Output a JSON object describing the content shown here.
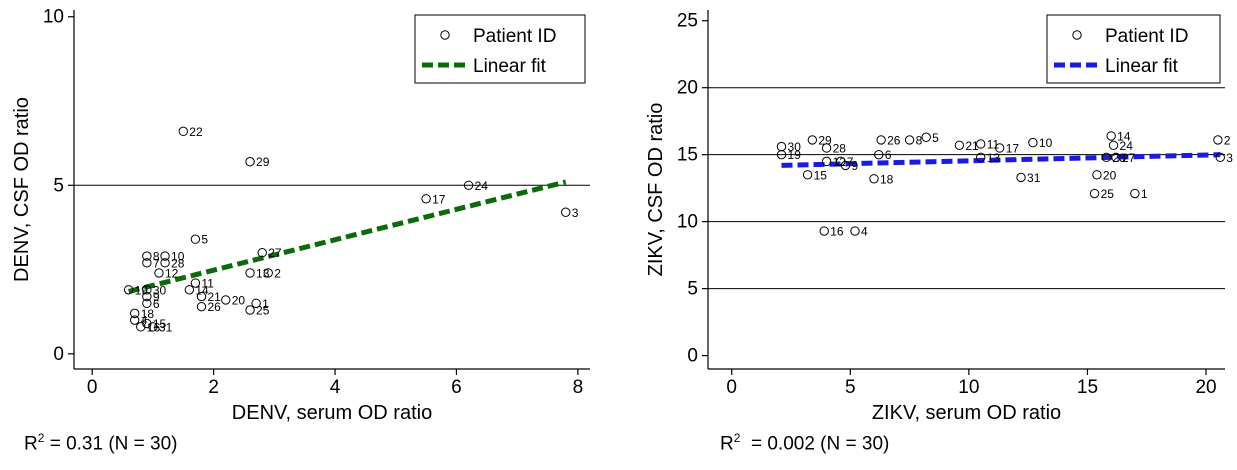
{
  "chart_data": [
    {
      "type": "scatter",
      "title": "",
      "xlabel": "DENV, serum OD ratio",
      "ylabel": "DENV, CSF OD ratio",
      "xlim": [
        -0.3,
        8.2
      ],
      "ylim": [
        -0.45,
        10.2
      ],
      "xticks": [
        0,
        2,
        4,
        6,
        8
      ],
      "yticks": [
        0,
        5,
        10
      ],
      "gridlines_y": [
        5
      ],
      "legend": {
        "position": "top-right",
        "marker_label": "Patient ID",
        "fit_label": "Linear fit"
      },
      "fit_color": "#0b6b0b",
      "fit": {
        "x": [
          0.6,
          7.8
        ],
        "y": [
          1.85,
          5.1
        ]
      },
      "points": [
        {
          "id": "22",
          "x": 1.5,
          "y": 6.6
        },
        {
          "id": "29",
          "x": 2.6,
          "y": 5.7
        },
        {
          "id": "24",
          "x": 6.2,
          "y": 5.0
        },
        {
          "id": "17",
          "x": 5.5,
          "y": 4.6
        },
        {
          "id": "3",
          "x": 7.8,
          "y": 4.2
        },
        {
          "id": "5",
          "x": 1.7,
          "y": 3.4
        },
        {
          "id": "27",
          "x": 2.8,
          "y": 3.0
        },
        {
          "id": "8",
          "x": 0.9,
          "y": 2.9
        },
        {
          "id": "10",
          "x": 1.2,
          "y": 2.9
        },
        {
          "id": "7",
          "x": 0.9,
          "y": 2.7
        },
        {
          "id": "28",
          "x": 1.2,
          "y": 2.7
        },
        {
          "id": "12",
          "x": 1.1,
          "y": 2.4
        },
        {
          "id": "13",
          "x": 2.6,
          "y": 2.4
        },
        {
          "id": "2",
          "x": 2.9,
          "y": 2.4
        },
        {
          "id": "11",
          "x": 1.7,
          "y": 2.1
        },
        {
          "id": "19",
          "x": 0.6,
          "y": 1.9
        },
        {
          "id": "30",
          "x": 0.9,
          "y": 1.9
        },
        {
          "id": "14",
          "x": 1.6,
          "y": 1.9
        },
        {
          "id": "9",
          "x": 0.9,
          "y": 1.7
        },
        {
          "id": "21",
          "x": 1.8,
          "y": 1.7
        },
        {
          "id": "20",
          "x": 2.2,
          "y": 1.6
        },
        {
          "id": "1",
          "x": 2.7,
          "y": 1.5
        },
        {
          "id": "6",
          "x": 0.9,
          "y": 1.5
        },
        {
          "id": "26",
          "x": 1.8,
          "y": 1.4
        },
        {
          "id": "25",
          "x": 2.6,
          "y": 1.3
        },
        {
          "id": "18",
          "x": 0.7,
          "y": 1.2
        },
        {
          "id": "4",
          "x": 0.7,
          "y": 1.0
        },
        {
          "id": "15",
          "x": 0.9,
          "y": 0.9
        },
        {
          "id": "16",
          "x": 0.8,
          "y": 0.8
        },
        {
          "id": "31",
          "x": 1.0,
          "y": 0.8
        }
      ],
      "stat_prefix": "R",
      "stat_sup": "2",
      "stat_suffix": " = 0.31 (N = 30)"
    },
    {
      "type": "scatter",
      "title": "",
      "xlabel": "ZIKV, serum OD ratio",
      "ylabel": "ZIKV, CSF OD ratio",
      "xlim": [
        -1.0,
        20.8
      ],
      "ylim": [
        -1.0,
        25.8
      ],
      "xticks": [
        0,
        5,
        10,
        15,
        20
      ],
      "yticks": [
        0,
        5,
        10,
        15,
        20,
        25
      ],
      "gridlines_y": [
        5,
        10,
        15,
        20
      ],
      "legend": {
        "position": "top-right",
        "marker_label": "Patient ID",
        "fit_label": "Linear fit"
      },
      "fit_color": "#1a1ae6",
      "fit": {
        "x": [
          2.1,
          20.6
        ],
        "y": [
          14.2,
          15.0
        ]
      },
      "points": [
        {
          "id": "30",
          "x": 2.1,
          "y": 15.6
        },
        {
          "id": "19",
          "x": 2.1,
          "y": 15.0
        },
        {
          "id": "29",
          "x": 3.4,
          "y": 16.1
        },
        {
          "id": "28",
          "x": 4.0,
          "y": 15.5
        },
        {
          "id": "12",
          "x": 4.0,
          "y": 14.5
        },
        {
          "id": "7",
          "x": 4.6,
          "y": 14.5
        },
        {
          "id": "9",
          "x": 4.8,
          "y": 14.2
        },
        {
          "id": "15",
          "x": 3.2,
          "y": 13.5
        },
        {
          "id": "26",
          "x": 6.3,
          "y": 16.1
        },
        {
          "id": "8",
          "x": 7.5,
          "y": 16.1
        },
        {
          "id": "5",
          "x": 8.2,
          "y": 16.3
        },
        {
          "id": "6",
          "x": 6.2,
          "y": 15.0
        },
        {
          "id": "18",
          "x": 6.0,
          "y": 13.2
        },
        {
          "id": "21",
          "x": 9.6,
          "y": 15.7
        },
        {
          "id": "11",
          "x": 10.5,
          "y": 15.8
        },
        {
          "id": "13",
          "x": 10.5,
          "y": 14.8
        },
        {
          "id": "17",
          "x": 11.3,
          "y": 15.5
        },
        {
          "id": "10",
          "x": 12.7,
          "y": 15.9
        },
        {
          "id": "31",
          "x": 12.2,
          "y": 13.3
        },
        {
          "id": "14",
          "x": 16.0,
          "y": 16.4
        },
        {
          "id": "24",
          "x": 16.1,
          "y": 15.7
        },
        {
          "id": "23",
          "x": 15.8,
          "y": 14.8
        },
        {
          "id": "27",
          "x": 16.2,
          "y": 14.8
        },
        {
          "id": "20",
          "x": 15.4,
          "y": 13.5
        },
        {
          "id": "25",
          "x": 15.3,
          "y": 12.1
        },
        {
          "id": "1",
          "x": 17.0,
          "y": 12.1
        },
        {
          "id": "2",
          "x": 20.5,
          "y": 16.1
        },
        {
          "id": "3",
          "x": 20.6,
          "y": 14.8
        },
        {
          "id": "16",
          "x": 3.9,
          "y": 9.3
        },
        {
          "id": "4",
          "x": 5.2,
          "y": 9.3
        }
      ],
      "stat_prefix": "R",
      "stat_sup": "2",
      "stat_suffix": "  = 0.002 (N = 30)"
    }
  ]
}
